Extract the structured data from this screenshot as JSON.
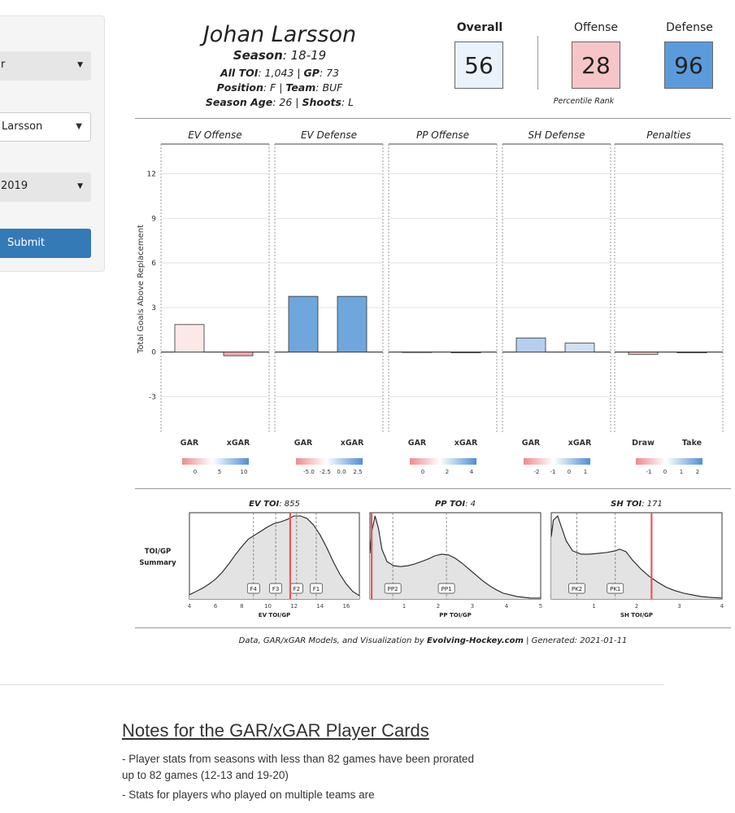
{
  "sidebar": {
    "select1": "r",
    "select2": "Larsson",
    "select3": "2019",
    "submit": "Submit"
  },
  "header": {
    "player_name": "Johan Larsson",
    "season_key": "Season",
    "season_val": ": 18-19",
    "toi_key": "All TOI",
    "toi_val": ": 1,043 | ",
    "gp_key": "GP",
    "gp_val": ": 73",
    "pos_key": "Position",
    "pos_val": ": F | ",
    "team_key": "Team",
    "team_val": ": BUF",
    "age_key": "Season Age",
    "age_val": ": 26 | ",
    "shoots_key": "Shoots",
    "shoots_val": ": L"
  },
  "ranks": {
    "overall_label": "Overall",
    "overall_value": "56",
    "offense_label": "Offense",
    "offense_value": "28",
    "defense_label": "Defense",
    "defense_value": "96",
    "percentile_label": "Percentile Rank",
    "overall_color": "#eaf2fb",
    "offense_color": "#f7c5c7",
    "defense_color": "#5b9bdc"
  },
  "chart_data": [
    {
      "type": "bar",
      "ylabel": "Total Goals Above Replacement",
      "ylim": [
        -5.5,
        14
      ],
      "yticks": [
        "12",
        "9",
        "6",
        "3",
        "0",
        "-3"
      ],
      "ytick_values": [
        12,
        9,
        6,
        3,
        0,
        -3
      ],
      "panels": [
        {
          "title": "EV Offense",
          "categories": [
            "GAR",
            "xGAR"
          ],
          "values": [
            1.85,
            -0.25
          ],
          "colors": [
            "#fde8e8",
            "#f4a6a8"
          ],
          "legend_ticks": [
            "0",
            "5",
            "10"
          ]
        },
        {
          "title": "EV Defense",
          "categories": [
            "GAR",
            "xGAR"
          ],
          "values": [
            3.75,
            3.75
          ],
          "colors": [
            "#6fa7dc",
            "#6fa7dc"
          ],
          "legend_ticks": [
            "-5.0",
            "-2.5",
            "0.0",
            "2.5"
          ]
        },
        {
          "title": "PP Offense",
          "categories": [
            "GAR",
            "xGAR"
          ],
          "values": [
            0.02,
            -0.03
          ],
          "colors": [
            "#e8eef8",
            "#f0dcdd"
          ],
          "legend_ticks": [
            "0",
            "2",
            "4"
          ]
        },
        {
          "title": "SH Defense",
          "categories": [
            "GAR",
            "xGAR"
          ],
          "values": [
            0.95,
            0.6
          ],
          "colors": [
            "#b5cfee",
            "#cfe0f3"
          ],
          "legend_ticks": [
            "-2",
            "-1",
            "0",
            "1"
          ]
        },
        {
          "title": "Penalties",
          "categories": [
            "Draw",
            "Take"
          ],
          "values": [
            -0.15,
            -0.02
          ],
          "colors": [
            "#f4b7b9",
            "#f2e6e6"
          ],
          "legend_ticks": [
            "-1",
            "0",
            "1",
            "2"
          ]
        }
      ]
    },
    {
      "type": "area",
      "row_label_1": "TOI/GP",
      "row_label_2": "Summary",
      "panels": [
        {
          "title_key": "EV TOI",
          "title_val": ": 855",
          "xlabel": "EV TOI/GP",
          "xlim": [
            4,
            17
          ],
          "xticks": [
            4,
            6,
            8,
            10,
            12,
            14,
            16
          ],
          "curve_x": [
            4,
            4.5,
            5,
            5.5,
            6,
            6.5,
            7,
            7.5,
            8,
            8.5,
            9,
            9.5,
            10,
            10.5,
            11,
            11.5,
            12,
            12.5,
            13,
            13.5,
            14,
            14.5,
            15,
            15.5,
            16,
            16.5,
            17
          ],
          "curve_y": [
            0.05,
            0.09,
            0.13,
            0.18,
            0.24,
            0.32,
            0.42,
            0.53,
            0.63,
            0.72,
            0.77,
            0.82,
            0.87,
            0.91,
            0.93,
            0.96,
            1.0,
            1.0,
            0.97,
            0.89,
            0.77,
            0.62,
            0.45,
            0.3,
            0.18,
            0.09,
            0.04
          ],
          "markers": [
            {
              "label": "F4",
              "x": 8.9
            },
            {
              "label": "F3",
              "x": 10.6
            },
            {
              "label": "F2",
              "x": 12.2
            },
            {
              "label": "F1",
              "x": 13.7
            }
          ],
          "player_value": 11.71
        },
        {
          "title_key": "PP TOI",
          "title_val": ": 4",
          "xlabel": "PP TOI/GP",
          "xlim": [
            0,
            5
          ],
          "xticks": [
            1,
            2,
            3,
            4,
            5
          ],
          "curve_x": [
            0,
            0.05,
            0.15,
            0.25,
            0.35,
            0.5,
            0.7,
            0.9,
            1.1,
            1.3,
            1.5,
            1.7,
            1.9,
            2.1,
            2.3,
            2.5,
            2.7,
            2.9,
            3.1,
            3.3,
            3.5,
            3.7,
            3.9,
            4.1,
            4.3,
            4.5,
            4.7,
            5
          ],
          "curve_y": [
            0.55,
            0.8,
            1.0,
            0.85,
            0.6,
            0.45,
            0.4,
            0.39,
            0.4,
            0.42,
            0.45,
            0.48,
            0.52,
            0.54,
            0.53,
            0.49,
            0.43,
            0.36,
            0.29,
            0.22,
            0.16,
            0.11,
            0.07,
            0.05,
            0.03,
            0.02,
            0.01,
            0.01
          ],
          "markers": [
            {
              "label": "PP2",
              "x": 0.67
            },
            {
              "label": "PP1",
              "x": 2.24
            }
          ],
          "player_value": 0.05
        },
        {
          "title_key": "SH TOI",
          "title_val": ": 171",
          "xlabel": "SH TOI/GP",
          "xlim": [
            0,
            4
          ],
          "xticks": [
            1,
            2,
            3,
            4
          ],
          "curve_x": [
            0,
            0.05,
            0.15,
            0.25,
            0.35,
            0.5,
            0.7,
            0.9,
            1.1,
            1.3,
            1.5,
            1.6,
            1.75,
            1.9,
            2.1,
            2.3,
            2.5,
            2.7,
            2.9,
            3.1,
            3.3,
            3.5,
            3.7,
            4
          ],
          "curve_y": [
            0.75,
            0.95,
            1.0,
            0.85,
            0.7,
            0.58,
            0.54,
            0.54,
            0.55,
            0.56,
            0.58,
            0.6,
            0.57,
            0.47,
            0.36,
            0.27,
            0.2,
            0.14,
            0.1,
            0.07,
            0.05,
            0.03,
            0.02,
            0.01
          ],
          "markers": [
            {
              "label": "PK2",
              "x": 0.6
            },
            {
              "label": "PK1",
              "x": 1.5
            }
          ],
          "player_value": 2.35
        }
      ]
    }
  ],
  "footer": {
    "credit_prefix": "Data, GAR/xGAR Models, and Visualization by ",
    "credit_site": "Evolving-Hockey.com",
    "credit_suffix": " | Generated: 2021-01-11"
  },
  "notes": {
    "title": "Notes for the GAR/xGAR Player Cards",
    "note1": "- Player stats from seasons with less than 82 games have been prorated up to 82 games (12-13 and 19-20)",
    "note2": "- Stats for players who played on multiple teams are"
  }
}
